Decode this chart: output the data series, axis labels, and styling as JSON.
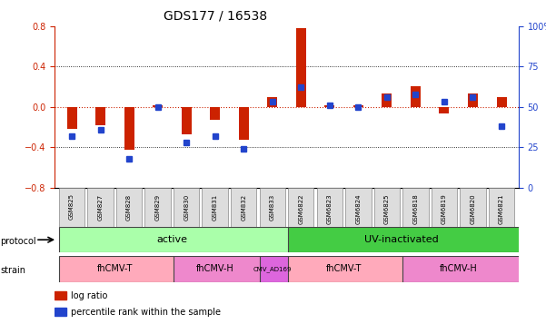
{
  "title": "GDS177 / 16538",
  "samples": [
    "GSM825",
    "GSM827",
    "GSM828",
    "GSM829",
    "GSM830",
    "GSM831",
    "GSM832",
    "GSM833",
    "GSM6822",
    "GSM6823",
    "GSM6824",
    "GSM6825",
    "GSM6818",
    "GSM6819",
    "GSM6820",
    "GSM6821"
  ],
  "log_ratio": [
    -0.22,
    -0.18,
    -0.42,
    0.02,
    -0.27,
    -0.13,
    -0.32,
    0.1,
    0.78,
    0.02,
    0.02,
    0.13,
    0.2,
    -0.06,
    0.13,
    0.1
  ],
  "pct_rank": [
    32,
    36,
    18,
    50,
    28,
    32,
    24,
    53,
    62,
    51,
    50,
    56,
    58,
    53,
    56,
    38
  ],
  "ylim_left": [
    -0.8,
    0.8
  ],
  "ylim_right": [
    0,
    100
  ],
  "yticks_left": [
    -0.8,
    -0.4,
    0.0,
    0.4,
    0.8
  ],
  "yticks_right": [
    0,
    25,
    50,
    75,
    100
  ],
  "bar_color": "#cc2200",
  "dot_color": "#2244cc",
  "zero_line_color": "#cc2200",
  "grid_color": "#000000",
  "protocol_groups": [
    {
      "label": "active",
      "start": 0,
      "end": 8,
      "color": "#aaffaa"
    },
    {
      "label": "UV-inactivated",
      "start": 8,
      "end": 16,
      "color": "#44cc44"
    }
  ],
  "strain_groups": [
    {
      "label": "fhCMV-T",
      "start": 0,
      "end": 4,
      "color": "#ffaabb"
    },
    {
      "label": "fhCMV-H",
      "start": 4,
      "end": 7,
      "color": "#ee88cc"
    },
    {
      "label": "CMV_AD169",
      "start": 7,
      "end": 8,
      "color": "#dd66dd"
    },
    {
      "label": "fhCMV-T",
      "start": 8,
      "end": 12,
      "color": "#ffaabb"
    },
    {
      "label": "fhCMV-H",
      "start": 12,
      "end": 16,
      "color": "#ee88cc"
    }
  ],
  "legend_items": [
    {
      "label": "log ratio",
      "color": "#cc2200"
    },
    {
      "label": "percentile rank within the sample",
      "color": "#2244cc"
    }
  ]
}
